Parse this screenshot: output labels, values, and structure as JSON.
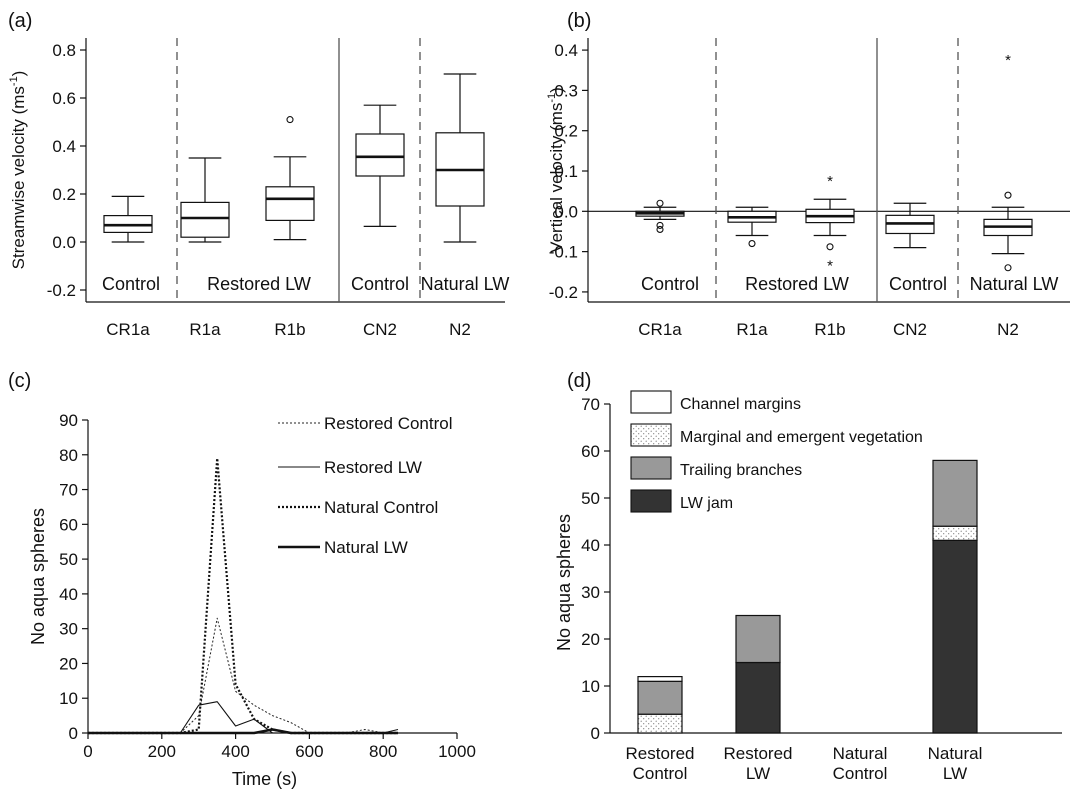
{
  "chart_data": [
    {
      "panel": "(a)",
      "type": "box",
      "ylabel": "Streamwise velocity (ms",
      "ylabel_sup": "-1",
      "ylabel_end": ")",
      "ylim": [
        -0.25,
        0.85
      ],
      "yticks": [
        -0.2,
        0.0,
        0.2,
        0.4,
        0.6,
        0.8
      ],
      "ytick_labels": [
        "-0.2",
        "0.0",
        "0.2",
        "0.4",
        "0.6",
        "0.8"
      ],
      "categories": [
        "CR1a",
        "R1a",
        "R1b",
        "CN2",
        "N2"
      ],
      "group_labels": [
        "Control",
        "Restored LW",
        "Control",
        "Natural LW"
      ],
      "boxes": [
        {
          "name": "CR1a",
          "whislo": 0.0,
          "q1": 0.04,
          "med": 0.07,
          "q3": 0.11,
          "whishi": 0.19,
          "outliers": [],
          "extremes": []
        },
        {
          "name": "R1a",
          "whislo": 0.0,
          "q1": 0.02,
          "med": 0.1,
          "q3": 0.165,
          "whishi": 0.35,
          "outliers": [],
          "extremes": []
        },
        {
          "name": "R1b",
          "whislo": 0.01,
          "q1": 0.09,
          "med": 0.18,
          "q3": 0.23,
          "whishi": 0.355,
          "outliers": [
            0.51
          ],
          "extremes": []
        },
        {
          "name": "CN2",
          "whislo": 0.065,
          "q1": 0.275,
          "med": 0.355,
          "q3": 0.45,
          "whishi": 0.57,
          "outliers": [],
          "extremes": []
        },
        {
          "name": "N2",
          "whislo": 0.0,
          "q1": 0.15,
          "med": 0.3,
          "q3": 0.455,
          "whishi": 0.7,
          "outliers": [],
          "extremes": []
        }
      ]
    },
    {
      "panel": "(b)",
      "type": "box",
      "ylabel": "Vertical velocity (ms",
      "ylabel_sup": "-1",
      "ylabel_end": ")",
      "ylim": [
        -0.225,
        0.43
      ],
      "yticks": [
        -0.2,
        -0.1,
        0.0,
        0.1,
        0.2,
        0.3,
        0.4
      ],
      "ytick_labels": [
        "-0.2",
        "-0.1",
        "0.0",
        "0.1",
        "0.2",
        "0.3",
        "0.4"
      ],
      "categories": [
        "CR1a",
        "R1a",
        "R1b",
        "CN2",
        "N2"
      ],
      "group_labels": [
        "Control",
        "Restored LW",
        "Control",
        "Natural LW"
      ],
      "boxes": [
        {
          "name": "CR1a",
          "whislo": -0.02,
          "q1": -0.012,
          "med": -0.005,
          "q3": 0.0,
          "whishi": 0.01,
          "outliers": [
            0.02,
            -0.035,
            -0.045
          ],
          "extremes": []
        },
        {
          "name": "R1a",
          "whislo": -0.06,
          "q1": -0.027,
          "med": -0.015,
          "q3": 0.0,
          "whishi": 0.01,
          "outliers": [
            -0.08
          ],
          "extremes": []
        },
        {
          "name": "R1b",
          "whislo": -0.06,
          "q1": -0.028,
          "med": -0.012,
          "q3": 0.005,
          "whishi": 0.03,
          "outliers": [
            -0.088
          ],
          "extremes": [
            0.08,
            -0.13
          ]
        },
        {
          "name": "CN2",
          "whislo": -0.09,
          "q1": -0.055,
          "med": -0.03,
          "q3": -0.01,
          "whishi": 0.02,
          "outliers": [],
          "extremes": []
        },
        {
          "name": "N2",
          "whislo": -0.105,
          "q1": -0.06,
          "med": -0.038,
          "q3": -0.02,
          "whishi": 0.01,
          "outliers": [
            0.04,
            -0.14
          ],
          "extremes": [
            0.38
          ]
        }
      ]
    },
    {
      "panel": "(c)",
      "type": "line",
      "xlabel": "Time (s)",
      "ylabel": "No aqua spheres",
      "xlim": [
        0,
        1000
      ],
      "ylim": [
        0,
        90
      ],
      "xticks": [
        0,
        200,
        400,
        600,
        800,
        1000
      ],
      "yticks": [
        0,
        10,
        20,
        30,
        40,
        50,
        60,
        70,
        80,
        90
      ],
      "series": [
        {
          "name": "Restored Control",
          "style": "dotted-thin",
          "x": [
            0,
            250,
            300,
            350,
            400,
            450,
            500,
            550,
            600,
            700,
            750,
            800,
            840
          ],
          "y": [
            0,
            0,
            5,
            33,
            12,
            8,
            5,
            3,
            0,
            0,
            1,
            0,
            0
          ]
        },
        {
          "name": "Restored LW",
          "style": "solid-thin",
          "x": [
            0,
            250,
            300,
            350,
            400,
            450,
            500,
            550,
            600,
            700,
            800,
            840
          ],
          "y": [
            0,
            0,
            8,
            9,
            2,
            4,
            0,
            0,
            0,
            0,
            0,
            1
          ]
        },
        {
          "name": "Natural Control",
          "style": "dotted-thick",
          "x": [
            0,
            250,
            300,
            350,
            400,
            450,
            500,
            550,
            600,
            700,
            800,
            840
          ],
          "y": [
            0,
            0,
            1,
            79,
            14,
            4,
            1,
            0,
            0,
            0,
            0,
            0
          ]
        },
        {
          "name": "Natural LW",
          "style": "solid-thick",
          "x": [
            0,
            250,
            300,
            350,
            400,
            450,
            500,
            550,
            600,
            700,
            800,
            840
          ],
          "y": [
            0,
            0,
            0,
            0,
            0,
            0,
            1,
            0,
            0,
            0,
            0,
            0
          ]
        }
      ]
    },
    {
      "panel": "(d)",
      "type": "bar",
      "stacked": true,
      "ylabel": "No aqua spheres",
      "ylim": [
        0,
        70
      ],
      "yticks": [
        0,
        10,
        20,
        30,
        40,
        50,
        60,
        70
      ],
      "categories": [
        [
          "Restored",
          "Control"
        ],
        [
          "Restored",
          "LW"
        ],
        [
          "Natural",
          "Control"
        ],
        [
          "Natural",
          "LW"
        ]
      ],
      "series": [
        {
          "name": "LW jam",
          "color": "#333333",
          "values": [
            0,
            15,
            0,
            41
          ]
        },
        {
          "name": "Marginal and emergent vegetation",
          "color": "dots",
          "values": [
            4,
            0,
            0,
            3
          ]
        },
        {
          "name": "Trailing branches",
          "color": "#999999",
          "values": [
            7,
            10,
            0,
            14
          ]
        },
        {
          "name": "Channel margins",
          "color": "#ffffff",
          "values": [
            1,
            0,
            0,
            0
          ]
        }
      ],
      "legend_order": [
        "Channel margins",
        "Marginal and emergent vegetation",
        "Trailing branches",
        "LW jam"
      ],
      "legend_position": "top-left"
    }
  ]
}
